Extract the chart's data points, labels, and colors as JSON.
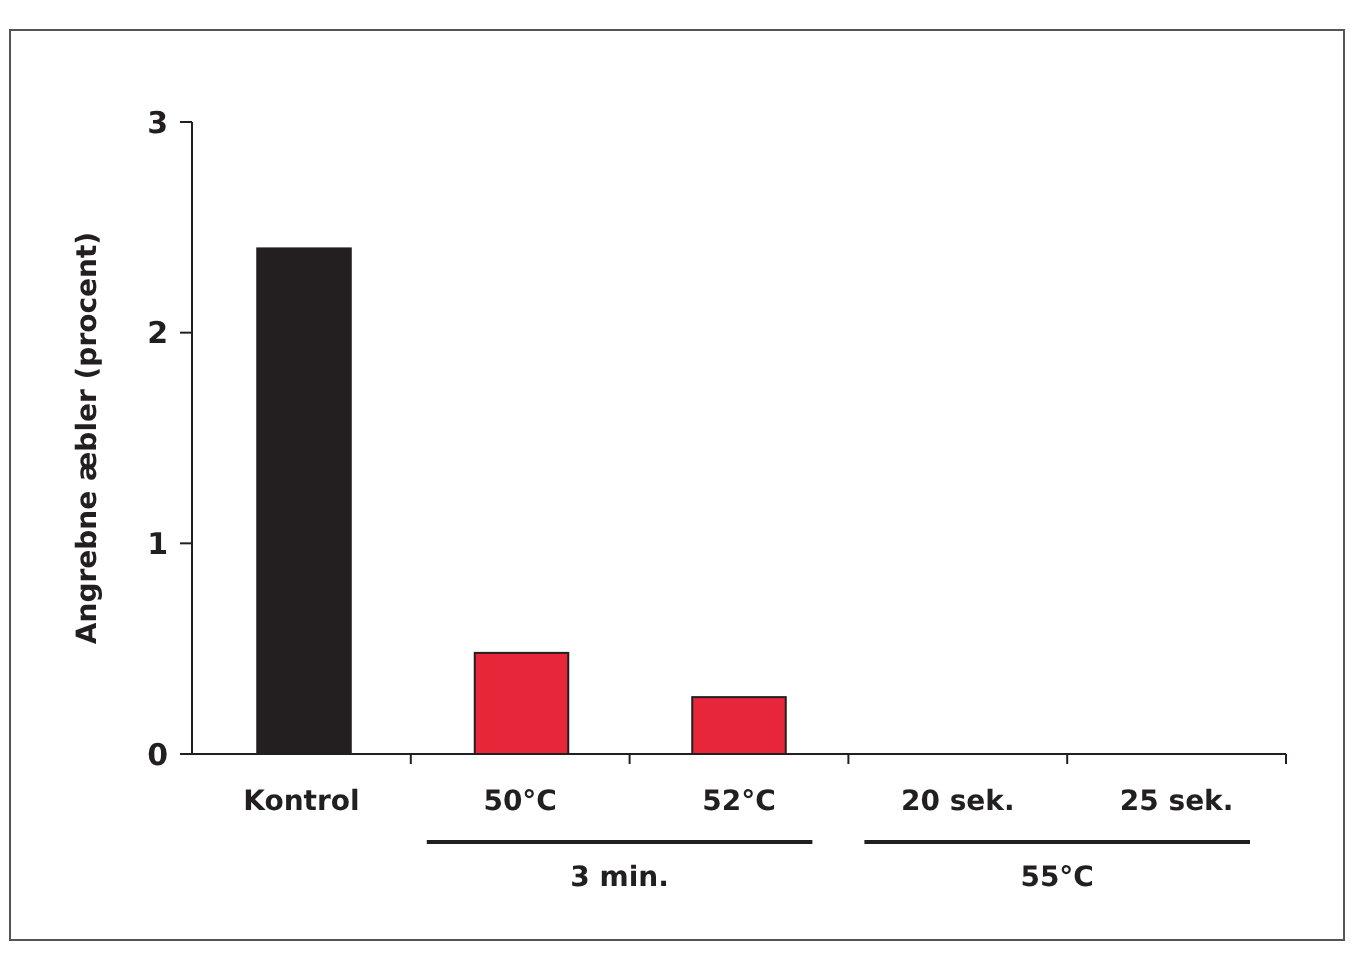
{
  "chart_data": {
    "type": "bar",
    "ylabel": "Angrebne æbler (procent)",
    "categories": [
      "Kontrol",
      "50°C",
      "52°C",
      "20 sek.",
      "25 sek."
    ],
    "values": [
      2.4,
      0.48,
      0.27,
      0,
      0
    ],
    "colors": [
      "#231f20",
      "#e8263a",
      "#e8263a",
      "#e8263a",
      "#e8263a"
    ],
    "ylim": [
      0,
      3
    ],
    "yticks": [
      0,
      1,
      2,
      3
    ],
    "annotations": [
      "3 min.",
      "55°C"
    ]
  }
}
